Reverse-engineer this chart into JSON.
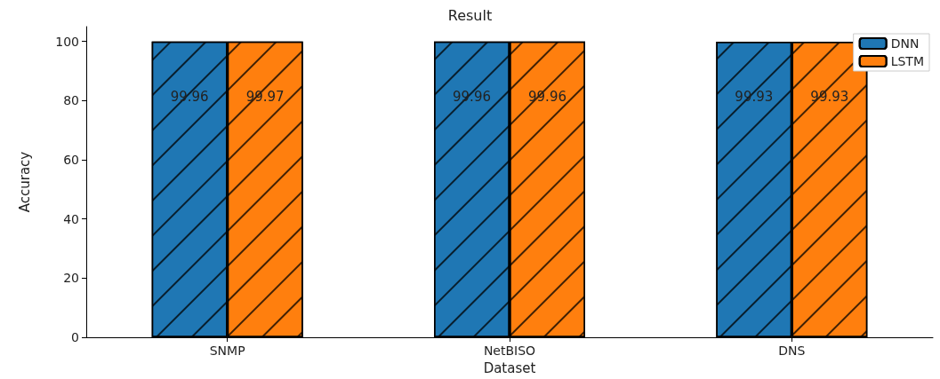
{
  "chart_data": {
    "type": "bar",
    "title": "Result",
    "xlabel": "Dataset",
    "ylabel": "Accuracy",
    "categories": [
      "SNMP",
      "NetBISO",
      "DNS"
    ],
    "series": [
      {
        "name": "DNN",
        "color": "#1f77b4",
        "values": [
          99.96,
          99.96,
          99.93
        ]
      },
      {
        "name": "LSTM",
        "color": "#ff7f0e",
        "values": [
          99.97,
          99.96,
          99.93
        ]
      }
    ],
    "ylim": [
      0,
      105
    ],
    "yticks": [
      0,
      20,
      40,
      60,
      80,
      100
    ],
    "data_labels": true,
    "legend": "top right",
    "grid": false
  }
}
